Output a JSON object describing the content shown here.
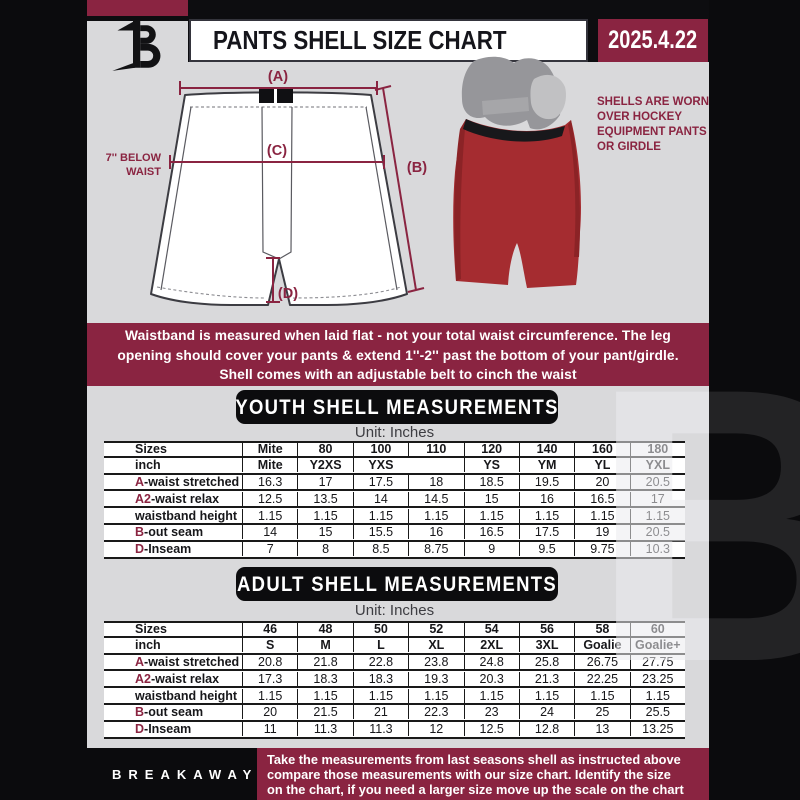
{
  "header": {
    "title": "PANTS SHELL SIZE CHART",
    "date": "2025.4.22"
  },
  "diagram": {
    "label_a": "(A)",
    "label_b": "(B)",
    "label_c": "(C)",
    "label_d": "(D)",
    "below_waist_line1": "7'' BELOW",
    "below_waist_line2": "WAIST",
    "photo_caption_line1": "SHELLS ARE WORN",
    "photo_caption_line2": "OVER HOCKEY",
    "photo_caption_line3": "EQUIPMENT PANTS",
    "photo_caption_line4": "OR GIRDLE"
  },
  "notice": {
    "line1": "Waistband is measured when laid flat - not your total waist circumference. The leg",
    "line2": "opening should cover your pants & extend 1''-2'' past the bottom of your pant/girdle.",
    "line3": "Shell comes with an adjustable belt to cinch the waist"
  },
  "youth": {
    "heading": "YOUTH SHELL MEASUREMENTS",
    "unit": "Unit: Inches",
    "rows": [
      {
        "accent": "",
        "label": "Sizes",
        "bold": true,
        "values": [
          "Mite",
          "80",
          "100",
          "110",
          "120",
          "140",
          "160",
          "180"
        ]
      },
      {
        "accent": "",
        "label": "inch",
        "bold": true,
        "values": [
          "Mite",
          "Y2XS",
          "YXS",
          "",
          "YS",
          "YM",
          "YL",
          "YXL"
        ]
      },
      {
        "accent": "A",
        "label": "-waist stretched",
        "bold": false,
        "values": [
          "16.3",
          "17",
          "17.5",
          "18",
          "18.5",
          "19.5",
          "20",
          "20.5"
        ]
      },
      {
        "accent": "A2",
        "label": "-waist relax",
        "bold": false,
        "values": [
          "12.5",
          "13.5",
          "14",
          "14.5",
          "15",
          "16",
          "16.5",
          "17"
        ]
      },
      {
        "accent": "",
        "label": "waistband height",
        "bold": false,
        "values": [
          "1.15",
          "1.15",
          "1.15",
          "1.15",
          "1.15",
          "1.15",
          "1.15",
          "1.15"
        ]
      },
      {
        "accent": "B",
        "label": "-out seam",
        "bold": false,
        "values": [
          "14",
          "15",
          "15.5",
          "16",
          "16.5",
          "17.5",
          "19",
          "20.5"
        ]
      },
      {
        "accent": "D",
        "label": "-Inseam",
        "bold": false,
        "values": [
          "7",
          "8",
          "8.5",
          "8.75",
          "9",
          "9.5",
          "9.75",
          "10.3"
        ]
      }
    ]
  },
  "adult": {
    "heading": "ADULT SHELL MEASUREMENTS",
    "unit": "Unit: Inches",
    "rows": [
      {
        "accent": "",
        "label": "Sizes",
        "bold": true,
        "values": [
          "46",
          "48",
          "50",
          "52",
          "54",
          "56",
          "58",
          "60"
        ]
      },
      {
        "accent": "",
        "label": "inch",
        "bold": true,
        "values": [
          "S",
          "M",
          "L",
          "XL",
          "2XL",
          "3XL",
          "Goalie",
          "Goalie+"
        ]
      },
      {
        "accent": "A",
        "label": "-waist stretched",
        "bold": false,
        "values": [
          "20.8",
          "21.8",
          "22.8",
          "23.8",
          "24.8",
          "25.8",
          "26.75",
          "27.75"
        ]
      },
      {
        "accent": "A2",
        "label": "-waist relax",
        "bold": false,
        "values": [
          "17.3",
          "18.3",
          "18.3",
          "19.3",
          "20.3",
          "21.3",
          "22.25",
          "23.25"
        ]
      },
      {
        "accent": "",
        "label": "waistband height",
        "bold": false,
        "values": [
          "1.15",
          "1.15",
          "1.15",
          "1.15",
          "1.15",
          "1.15",
          "1.15",
          "1.15"
        ]
      },
      {
        "accent": "B",
        "label": "-out seam",
        "bold": false,
        "values": [
          "20",
          "21.5",
          "21",
          "22.3",
          "23",
          "24",
          "25",
          "25.5"
        ]
      },
      {
        "accent": "D",
        "label": "-Inseam",
        "bold": false,
        "values": [
          "11",
          "11.3",
          "11.3",
          "12",
          "12.5",
          "12.8",
          "13",
          "13.25"
        ]
      }
    ]
  },
  "footer": {
    "brand": "BREAKAWAY",
    "line1": "Take the measurements from last seasons shell as instructed above",
    "line2": "compare those measurements with our size chart. Identify the size",
    "line3": "on the chart, if you need a larger size move up the scale on the chart"
  },
  "watermark_letter": "B",
  "colors": {
    "maroon": "#8a2441",
    "frame_black": "#0b0b0d",
    "page_gray": "#d9d9db",
    "shell_red": "#a52c30"
  }
}
